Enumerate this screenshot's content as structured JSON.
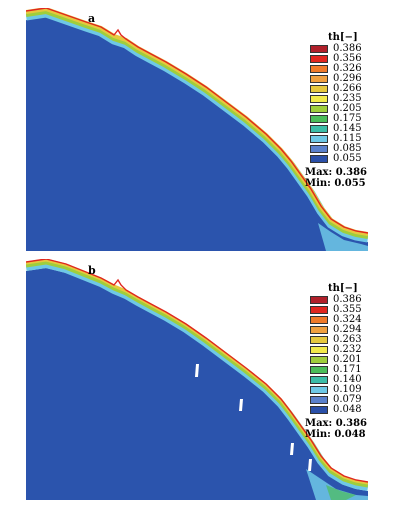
{
  "panels": [
    {
      "label": "a",
      "legend_title": "th[−]",
      "legend_values": [
        "0.386",
        "0.356",
        "0.326",
        "0.296",
        "0.266",
        "0.235",
        "0.205",
        "0.175",
        "0.145",
        "0.115",
        "0.085",
        "0.055"
      ],
      "max_label": "Max:",
      "max_value": "0.386",
      "min_label": "Min:",
      "min_value": "0.055"
    },
    {
      "label": "b",
      "legend_title": "th[−]",
      "legend_values": [
        "0.386",
        "0.355",
        "0.324",
        "0.294",
        "0.263",
        "0.232",
        "0.201",
        "0.171",
        "0.140",
        "0.109",
        "0.079",
        "0.048"
      ],
      "max_label": "Max:",
      "max_value": "0.386",
      "min_label": "Min:",
      "min_value": "0.048"
    }
  ],
  "colors": {
    "scale": [
      "#b0202a",
      "#e0261f",
      "#f07a2a",
      "#f0a040",
      "#e6c83e",
      "#f2ea4a",
      "#9fce3c",
      "#4bbd5a",
      "#3cbda8",
      "#6ec8e6",
      "#5a80cc",
      "#2a4fa8"
    ],
    "soil": "#2b54ad",
    "sky": "#ffffff"
  }
}
